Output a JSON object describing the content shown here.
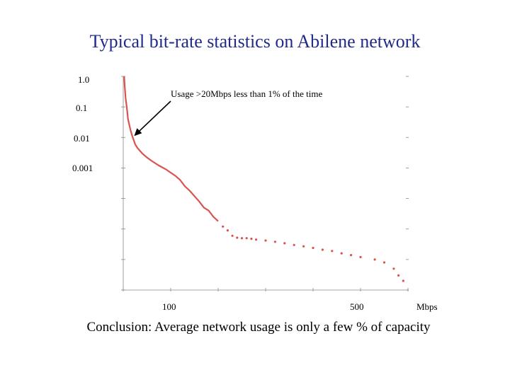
{
  "title": "Typical bit-rate statistics on Abilene network",
  "conclusion": "Conclusion: Average network usage is only a few % of capacity",
  "colors": {
    "title": "#1f2a8c",
    "series": "#d9534f",
    "axis": "#888888"
  },
  "chart_data": {
    "type": "line",
    "title": "",
    "xlabel": "Mbps",
    "ylabel": "",
    "yscale": "log",
    "ylim": [
      1e-07,
      1.0
    ],
    "xlim": [
      0,
      600
    ],
    "y_tick_labels": [
      "1.0",
      "0.1",
      "0.01",
      "0.001"
    ],
    "y_ticks": [
      1.0,
      0.1,
      0.01,
      0.001
    ],
    "x_tick_labels": [
      "100",
      "500",
      "Mbps"
    ],
    "x_ticks": [
      100,
      500
    ],
    "grid": false,
    "annotation": {
      "text": "Usage >20Mbps less than 1% of the time",
      "x": 20,
      "y": 0.01
    },
    "series": [
      {
        "values_x": [
          2,
          3,
          5,
          8,
          10,
          13,
          16,
          20,
          25,
          30,
          40,
          50,
          60,
          75,
          90,
          100,
          110,
          120,
          130,
          140,
          150,
          160,
          170,
          180,
          190,
          200,
          210,
          220,
          230,
          240,
          250,
          260,
          270,
          280,
          300,
          320,
          340,
          360,
          380,
          400,
          420,
          440,
          460,
          480,
          500,
          530,
          550,
          570,
          580,
          590
        ],
        "values_y": [
          1.0,
          0.5,
          0.2,
          0.08,
          0.04,
          0.025,
          0.016,
          0.01,
          0.006,
          0.0045,
          0.003,
          0.0022,
          0.0017,
          0.0012,
          0.0009,
          0.0007,
          0.00055,
          0.0004,
          0.00025,
          0.00018,
          0.00012,
          8e-05,
          5e-05,
          4e-05,
          2.5e-05,
          1.8e-05,
          1.2e-05,
          9e-06,
          6e-06,
          5.2e-06,
          5e-06,
          5e-06,
          4.8e-06,
          4.5e-06,
          4.2e-06,
          3.8e-06,
          3.4e-06,
          3e-06,
          2.7e-06,
          2.4e-06,
          2.1e-06,
          1.9e-06,
          1.6e-06,
          1.4e-06,
          1.2e-06,
          1e-06,
          8e-07,
          5e-07,
          3e-07,
          2e-07
        ]
      }
    ]
  }
}
